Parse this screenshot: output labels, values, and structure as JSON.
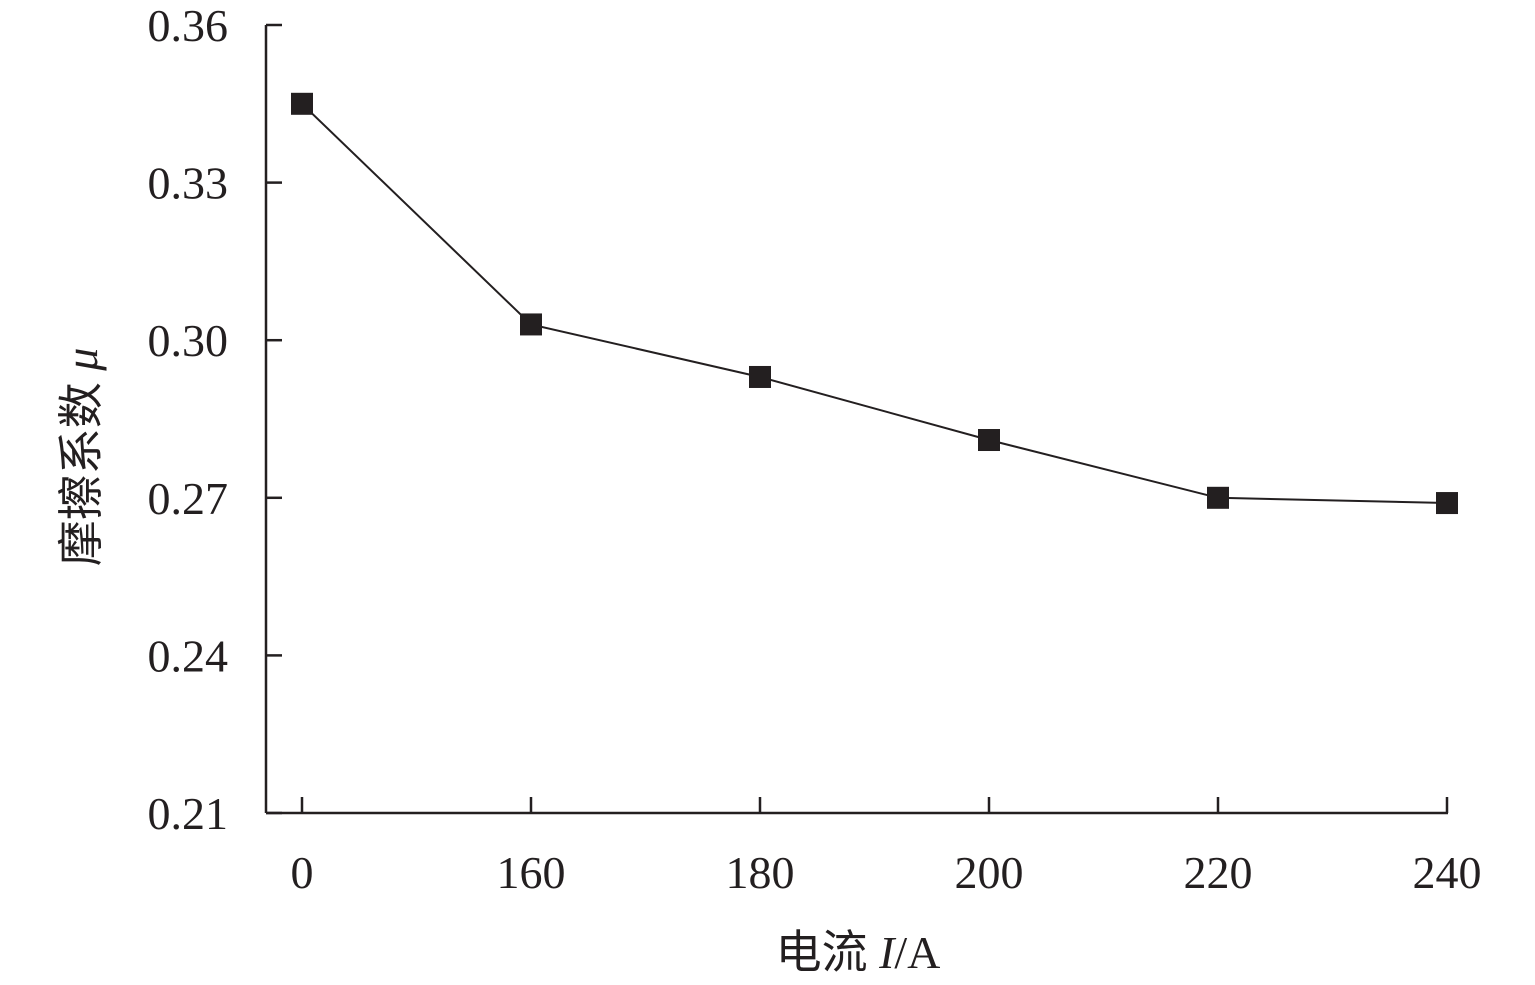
{
  "chart_data": {
    "type": "line",
    "categories": [
      "0",
      "160",
      "180",
      "200",
      "220",
      "240"
    ],
    "values": [
      0.345,
      0.303,
      0.293,
      0.281,
      0.27,
      0.269
    ],
    "xlabel": {
      "prefix": "电流 ",
      "var": "I",
      "suffix": "/A"
    },
    "ylabel": {
      "prefix": "摩擦系数 ",
      "var": "μ"
    },
    "yticks": [
      "0.21",
      "0.24",
      "0.27",
      "0.30",
      "0.33",
      "0.36"
    ],
    "ylim": [
      0.21,
      0.36
    ],
    "marker": "square",
    "grid": false,
    "legend": "none",
    "colors": {
      "ink": "#231f20",
      "marker": "#231f20"
    }
  }
}
